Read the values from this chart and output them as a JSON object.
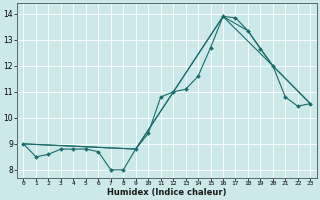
{
  "xlabel": "Humidex (Indice chaleur)",
  "xlim": [
    -0.5,
    23.5
  ],
  "ylim": [
    7.7,
    14.4
  ],
  "xticks": [
    0,
    1,
    2,
    3,
    4,
    5,
    6,
    7,
    8,
    9,
    10,
    11,
    12,
    13,
    14,
    15,
    16,
    17,
    18,
    19,
    20,
    21,
    22,
    23
  ],
  "yticks": [
    8,
    9,
    10,
    11,
    12,
    13,
    14
  ],
  "background_color": "#cce8e8",
  "line_color": "#1a6b6b",
  "grid_color": "#ffffff",
  "lines": [
    {
      "x": [
        0,
        1,
        2,
        3,
        4,
        5,
        6,
        7,
        8,
        9,
        10,
        11,
        12,
        13,
        14,
        15,
        16,
        17,
        18,
        19,
        20,
        21,
        22,
        23
      ],
      "y": [
        9.0,
        8.5,
        8.6,
        8.8,
        8.8,
        8.8,
        8.7,
        8.0,
        8.0,
        8.8,
        9.4,
        10.8,
        11.0,
        11.1,
        11.6,
        12.7,
        13.9,
        13.85,
        13.35,
        12.65,
        12.0,
        10.8,
        10.45,
        10.55
      ]
    },
    {
      "x": [
        0,
        9,
        16,
        20,
        23
      ],
      "y": [
        9.0,
        8.8,
        13.9,
        12.0,
        10.55
      ]
    },
    {
      "x": [
        0,
        9,
        16,
        18,
        20,
        23
      ],
      "y": [
        9.0,
        8.8,
        13.9,
        13.35,
        12.0,
        10.55
      ]
    }
  ]
}
